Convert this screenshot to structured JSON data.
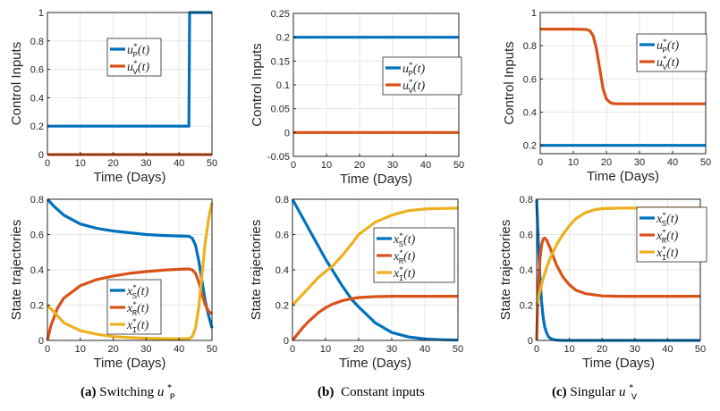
{
  "chart_data": [
    {
      "id": "a-top",
      "type": "line",
      "panel": "a",
      "row": "top",
      "xlabel": "Time (Days)",
      "ylabel": "Control Inputs",
      "xlim": [
        0,
        50
      ],
      "ylim": [
        0,
        1
      ],
      "xticks": [
        "0",
        "10",
        "20",
        "30",
        "40",
        "50"
      ],
      "yticks": [
        "0",
        "0.2",
        "0.4",
        "0.6",
        "0.8",
        "1"
      ],
      "grid": true,
      "legend": "center-right",
      "series": [
        {
          "name": "u_P^*(t)",
          "legend_main": "u",
          "legend_sup": "*",
          "legend_sub": "P",
          "color": "#0072BD",
          "x": [
            0,
            43,
            43.2,
            50
          ],
          "y": [
            0.2,
            0.2,
            1,
            1
          ]
        },
        {
          "name": "u_V^*(t)",
          "legend_main": "u",
          "legend_sup": "*",
          "legend_sub": "V",
          "color": "#D95319",
          "x": [
            0,
            50
          ],
          "y": [
            0,
            0
          ]
        }
      ]
    },
    {
      "id": "b-top",
      "type": "line",
      "panel": "b",
      "row": "top",
      "xlabel": "Time (Days)",
      "ylabel": "Control Inputs",
      "xlim": [
        0,
        50
      ],
      "ylim": [
        -0.05,
        0.25
      ],
      "xticks": [
        "0",
        "10",
        "20",
        "30",
        "40",
        "50"
      ],
      "yticks": [
        "-0.05",
        "0",
        "0.05",
        "0.1",
        "0.15",
        "0.2",
        "0.25"
      ],
      "grid": true,
      "legend": "right",
      "series": [
        {
          "name": "u_P^*(t)",
          "legend_main": "u",
          "legend_sup": "*",
          "legend_sub": "P",
          "color": "#0072BD",
          "x": [
            0,
            50
          ],
          "y": [
            0.2,
            0.2
          ]
        },
        {
          "name": "u_V^*(t)",
          "legend_main": "u",
          "legend_sup": "*",
          "legend_sub": "V",
          "color": "#D95319",
          "x": [
            0,
            50
          ],
          "y": [
            0,
            0
          ]
        }
      ]
    },
    {
      "id": "c-top",
      "type": "line",
      "panel": "c",
      "row": "top",
      "xlabel": "Time (Days)",
      "ylabel": "Control Inputs",
      "xlim": [
        0,
        50
      ],
      "ylim": [
        0.15,
        1
      ],
      "xticks": [
        "0",
        "10",
        "20",
        "30",
        "40",
        "50"
      ],
      "yticks": [
        "0.2",
        "0.4",
        "0.6",
        "0.8",
        "1"
      ],
      "grid": true,
      "legend": "top-right",
      "series": [
        {
          "name": "u_P^*(t)",
          "legend_main": "u",
          "legend_sup": "*",
          "legend_sub": "P",
          "color": "#0072BD",
          "x": [
            0,
            50
          ],
          "y": [
            0.2,
            0.2
          ]
        },
        {
          "name": "u_V^*(t)",
          "legend_main": "u",
          "legend_sup": "*",
          "legend_sub": "V",
          "color": "#D95319",
          "x": [
            0,
            10,
            14,
            15,
            16,
            17,
            18,
            19,
            20,
            21,
            22,
            24,
            30,
            40,
            50
          ],
          "y": [
            0.9,
            0.9,
            0.898,
            0.89,
            0.86,
            0.78,
            0.66,
            0.54,
            0.48,
            0.46,
            0.452,
            0.45,
            0.45,
            0.45,
            0.45
          ]
        }
      ]
    },
    {
      "id": "a-bottom",
      "type": "line",
      "panel": "a",
      "row": "bottom",
      "xlabel": "Time (Days)",
      "ylabel": "State trajectories",
      "xlim": [
        0,
        50
      ],
      "ylim": [
        0,
        0.8
      ],
      "xticks": [
        "0",
        "10",
        "20",
        "30",
        "40",
        "50"
      ],
      "yticks": [
        "0",
        "0.2",
        "0.4",
        "0.6",
        "0.8"
      ],
      "grid": true,
      "legend": "bottom-center",
      "series": [
        {
          "name": "x_S^*(t)",
          "legend_main": "x",
          "legend_sup": "*",
          "legend_sub": "S",
          "color": "#0072BD",
          "x": [
            0,
            2,
            5,
            10,
            15,
            20,
            25,
            30,
            35,
            40,
            43,
            44,
            45,
            46,
            47,
            48,
            49,
            50
          ],
          "y": [
            0.8,
            0.76,
            0.71,
            0.66,
            0.635,
            0.62,
            0.61,
            0.6,
            0.595,
            0.592,
            0.59,
            0.58,
            0.54,
            0.45,
            0.33,
            0.22,
            0.14,
            0.07
          ]
        },
        {
          "name": "x_R^*(t)",
          "legend_main": "x",
          "legend_sup": "*",
          "legend_sub": "R",
          "color": "#D95319",
          "x": [
            0,
            1,
            3,
            5,
            10,
            15,
            20,
            25,
            30,
            35,
            40,
            43,
            44,
            45,
            46,
            47,
            48,
            49,
            50
          ],
          "y": [
            0,
            0.08,
            0.18,
            0.24,
            0.31,
            0.345,
            0.365,
            0.38,
            0.39,
            0.398,
            0.403,
            0.405,
            0.4,
            0.38,
            0.33,
            0.26,
            0.2,
            0.165,
            0.15
          ]
        },
        {
          "name": "x_I^*(t)",
          "legend_main": "x",
          "legend_sup": "*",
          "legend_sub": "I",
          "color": "#EDB120",
          "x": [
            0,
            2,
            5,
            10,
            15,
            20,
            25,
            30,
            35,
            40,
            43,
            44,
            45,
            46,
            47,
            48,
            49,
            50
          ],
          "y": [
            0.2,
            0.16,
            0.1,
            0.055,
            0.035,
            0.022,
            0.016,
            0.012,
            0.01,
            0.009,
            0.01,
            0.02,
            0.07,
            0.19,
            0.38,
            0.56,
            0.69,
            0.78
          ]
        }
      ]
    },
    {
      "id": "b-bottom",
      "type": "line",
      "panel": "b",
      "row": "bottom",
      "xlabel": "Time (Days)",
      "ylabel": "State trajectories",
      "xlim": [
        0,
        50
      ],
      "ylim": [
        0,
        0.8
      ],
      "xticks": [
        "0",
        "10",
        "20",
        "30",
        "40",
        "50"
      ],
      "yticks": [
        "0",
        "0.2",
        "0.4",
        "0.6",
        "0.8"
      ],
      "grid": true,
      "legend": "top-right",
      "series": [
        {
          "name": "x_S^*(t)",
          "legend_main": "x",
          "legend_sup": "*",
          "legend_sub": "S",
          "color": "#0072BD",
          "x": [
            0,
            5,
            10,
            12,
            15,
            18,
            20,
            25,
            30,
            35,
            40,
            45,
            50
          ],
          "y": [
            0.8,
            0.63,
            0.46,
            0.4,
            0.31,
            0.23,
            0.19,
            0.1,
            0.045,
            0.02,
            0.008,
            0.004,
            0.002
          ]
        },
        {
          "name": "x_R^*(t)",
          "legend_main": "x",
          "legend_sup": "*",
          "legend_sub": "R",
          "color": "#D95319",
          "x": [
            0,
            3,
            5,
            8,
            10,
            12,
            15,
            18,
            20,
            25,
            30,
            40,
            50
          ],
          "y": [
            0,
            0.07,
            0.11,
            0.16,
            0.185,
            0.205,
            0.225,
            0.237,
            0.243,
            0.248,
            0.25,
            0.25,
            0.25
          ]
        },
        {
          "name": "x_I^*(t)",
          "legend_main": "x",
          "legend_sup": "*",
          "legend_sub": "I",
          "color": "#EDB120",
          "x": [
            0,
            3,
            5,
            8,
            10,
            12,
            15,
            18,
            20,
            25,
            30,
            35,
            40,
            45,
            50
          ],
          "y": [
            0.2,
            0.26,
            0.3,
            0.36,
            0.39,
            0.42,
            0.48,
            0.55,
            0.6,
            0.67,
            0.71,
            0.735,
            0.745,
            0.748,
            0.75
          ]
        }
      ]
    },
    {
      "id": "c-bottom",
      "type": "line",
      "panel": "c",
      "row": "bottom",
      "xlabel": "Time (Days)",
      "ylabel": "State trajectories",
      "xlim": [
        0,
        50
      ],
      "ylim": [
        0,
        0.8
      ],
      "xticks": [
        "0",
        "10",
        "20",
        "30",
        "40",
        "50"
      ],
      "yticks": [
        "0",
        "0.2",
        "0.4",
        "0.6",
        "0.8"
      ],
      "grid": true,
      "legend": "top-right",
      "series": [
        {
          "name": "x_S^*(t)",
          "legend_main": "x",
          "legend_sup": "*",
          "legend_sub": "S",
          "color": "#0072BD",
          "x": [
            0,
            0.3,
            0.7,
            1,
            1.5,
            2,
            2.5,
            3,
            3.5,
            4,
            5,
            6,
            8,
            50
          ],
          "y": [
            0.8,
            0.66,
            0.48,
            0.36,
            0.22,
            0.13,
            0.075,
            0.045,
            0.025,
            0.014,
            0.005,
            0.002,
            0,
            0
          ]
        },
        {
          "name": "x_R^*(t)",
          "legend_main": "x",
          "legend_sup": "*",
          "legend_sub": "R",
          "color": "#D95319",
          "x": [
            0,
            0.3,
            0.7,
            1,
            1.5,
            2,
            2.5,
            3,
            4,
            5,
            6,
            8,
            10,
            12,
            15,
            20,
            25,
            30,
            50
          ],
          "y": [
            0,
            0.2,
            0.38,
            0.46,
            0.54,
            0.575,
            0.58,
            0.57,
            0.53,
            0.48,
            0.43,
            0.36,
            0.315,
            0.285,
            0.265,
            0.252,
            0.25,
            0.25,
            0.25
          ]
        },
        {
          "name": "x_I^*(t)",
          "legend_main": "x",
          "legend_sup": "*",
          "legend_sub": "I",
          "color": "#EDB120",
          "x": [
            0,
            1,
            2,
            3,
            4,
            5,
            6,
            8,
            10,
            12,
            15,
            18,
            20,
            25,
            30,
            50
          ],
          "y": [
            0.2,
            0.28,
            0.35,
            0.41,
            0.46,
            0.5,
            0.54,
            0.6,
            0.65,
            0.69,
            0.725,
            0.742,
            0.747,
            0.75,
            0.75,
            0.75
          ]
        }
      ]
    }
  ],
  "captions": {
    "a": {
      "label": "(a)",
      "text": "Switching ",
      "var_main": "u",
      "var_sup": "*",
      "var_sub": "P"
    },
    "b": {
      "label": "(b)",
      "text": "Constant inputs"
    },
    "c": {
      "label": "(c)",
      "text": "Singular ",
      "var_main": "u",
      "var_sup": "*",
      "var_sub": "V"
    }
  }
}
